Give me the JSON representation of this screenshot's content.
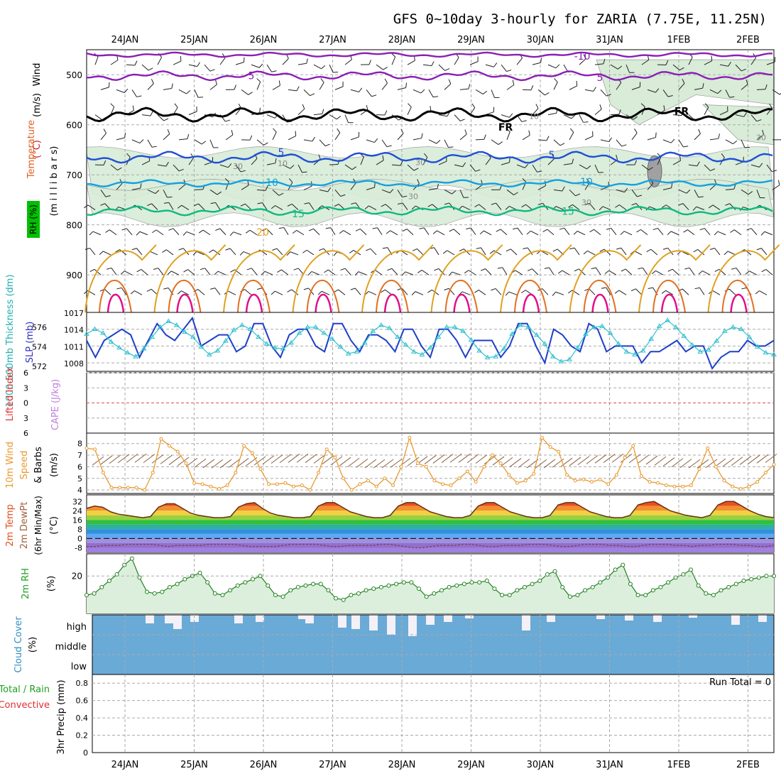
{
  "title": "GFS 0~10day 3-hourly for ZARIA (7.75E, 11.25N)",
  "dates": [
    "24JAN",
    "25JAN",
    "26JAN",
    "27JAN",
    "28JAN",
    "29JAN",
    "30JAN",
    "31JAN",
    "1FEB",
    "2FEB"
  ],
  "colors": {
    "purple": "#8a1fb5",
    "black": "#000000",
    "blue": "#1f4fd6",
    "cyan": "#14a0e0",
    "green": "#10b880",
    "gold": "#e0a020",
    "orange": "#e07020",
    "magenta": "#e0108a",
    "rh_fill": "#d8ecd8",
    "grid": "#999999"
  },
  "chart_data": [
    {
      "type": "line",
      "name": "upper_air",
      "ylabel_parts": {
        "wind": "Wind",
        "wind_unit": "(m/s)",
        "temp": "Temperature",
        "temp_unit": "(°C)",
        "rh": "RH (%)",
        "pressure": "(m i l l i b a r s)"
      },
      "y_ticks": [
        500,
        600,
        700,
        800,
        900
      ],
      "ylim": [
        1000,
        450
      ],
      "isotherm_labels": [
        {
          "text": "-10",
          "color": "purple"
        },
        {
          "text": "5",
          "color": "purple"
        },
        {
          "text": "5",
          "color": "purple"
        },
        {
          "text": "FR",
          "color": "black"
        },
        {
          "text": "FR",
          "color": "black"
        },
        {
          "text": "5",
          "color": "blue"
        },
        {
          "text": "5",
          "color": "blue"
        },
        {
          "text": "10",
          "color": "cyan"
        },
        {
          "text": "10",
          "color": "cyan"
        },
        {
          "text": "15",
          "color": "green"
        },
        {
          "text": "15",
          "color": "green"
        },
        {
          "text": "20",
          "color": "gold"
        }
      ],
      "rh_labels": [
        "30",
        "10",
        "30",
        "10",
        "30",
        "30",
        "30"
      ]
    },
    {
      "type": "line",
      "name": "thickness_slp",
      "ylabel_left": "1000-500mb Thickness (dm)",
      "ylabel_right": "SLP (mb)",
      "left_ticks": [
        572,
        574,
        576
      ],
      "right_ticks": [
        1008,
        1011,
        1014,
        1017
      ],
      "series": [
        {
          "name": "SLP (mb)",
          "color": "#1f3fc8",
          "values": [
            1012,
            1009,
            1012,
            1013,
            1014,
            1013,
            1009,
            1012,
            1015,
            1013,
            1012,
            1014,
            1016,
            1011,
            1012,
            1013,
            1013,
            1010,
            1011,
            1015,
            1015,
            1011,
            1009,
            1013,
            1014,
            1014,
            1011,
            1010,
            1015,
            1015,
            1012,
            1010,
            1013,
            1013,
            1012,
            1010,
            1014,
            1014,
            1011,
            1009,
            1014,
            1014,
            1012,
            1009,
            1012,
            1012,
            1012,
            1009,
            1011,
            1015,
            1015,
            1011,
            1008,
            1014,
            1013,
            1011,
            1010,
            1015,
            1014,
            1010,
            1011,
            1011,
            1011,
            1008,
            1010,
            1010,
            1011,
            1012,
            1010,
            1011,
            1011,
            1007,
            1009,
            1010,
            1010,
            1012,
            1011,
            1011,
            1012
          ]
        },
        {
          "name": "1000-500mb Thickness (dm)",
          "color": "#30c0d0",
          "values": [
            575.3,
            575.8,
            575.4,
            574.5,
            573.9,
            573.4,
            573.0,
            573.8,
            575.0,
            576.0,
            576.6,
            576.2,
            575.5,
            575.0,
            574.0,
            573.2,
            573.6,
            574.6,
            575.7,
            576.2,
            575.8,
            575.0,
            574.3,
            573.9,
            573.8,
            574.4,
            575.4,
            576.0,
            576.0,
            575.4,
            574.8,
            574.0,
            573.3,
            573.5,
            574.4,
            575.6,
            576.2,
            575.9,
            575.0,
            574.2,
            573.5,
            573.2,
            573.9,
            575.0,
            576.0,
            576.0,
            575.6,
            574.7,
            573.6,
            572.9,
            573.0,
            573.8,
            575.3,
            576.2,
            576.0,
            575.2,
            574.3,
            573.0,
            572.5,
            572.7,
            573.9,
            575.3,
            576.0,
            576.1,
            575.4,
            574.3,
            573.5,
            573.2,
            573.6,
            574.8,
            576.1,
            576.7,
            576.0,
            575.1,
            574.2,
            573.5,
            573.7,
            574.6,
            575.6,
            576.0,
            575.8,
            575.0,
            574.0,
            573.4,
            573.2
          ]
        }
      ]
    },
    {
      "type": "line",
      "name": "stability",
      "ylabel_left": "Lifted Index",
      "ylabel_right": "CAPE (J/kg)",
      "y_ticks": [
        -6,
        -3,
        0,
        3,
        6
      ],
      "ylim": [
        6,
        -6
      ]
    },
    {
      "type": "line",
      "name": "wind10m",
      "ylabel": "10m Wind Speed & Barbs",
      "yunit": "(m/s)",
      "y_ticks": [
        4,
        5,
        6,
        7,
        8
      ],
      "series": [
        {
          "name": "10m Wind Speed",
          "color": "#e89a30",
          "values": [
            7.6,
            7.5,
            5.5,
            4.2,
            4.2,
            4.2,
            4.2,
            4.0,
            5.5,
            8.4,
            7.8,
            7.3,
            6.3,
            4.6,
            4.5,
            4.3,
            4.1,
            4.4,
            5.5,
            7.8,
            7.2,
            5.8,
            4.5,
            4.5,
            4.6,
            4.3,
            4.4,
            4.0,
            5.5,
            7.5,
            6.8,
            5.0,
            4.0,
            4.5,
            4.8,
            4.3,
            5.0,
            4.4,
            6.0,
            8.5,
            6.3,
            6.0,
            4.8,
            4.5,
            4.4,
            5.0,
            5.6,
            4.7,
            6.0,
            7.0,
            6.3,
            5.3,
            4.6,
            4.8,
            5.4,
            8.5,
            7.7,
            7.3,
            5.3,
            4.8,
            4.9,
            4.7,
            4.9,
            4.5,
            5.3,
            6.8,
            7.8,
            5.2,
            4.7,
            4.6,
            4.4,
            4.3,
            4.3,
            4.4,
            5.8,
            7.6,
            6.0,
            4.8,
            4.3,
            4.1,
            4.3,
            4.7,
            5.5,
            6.2
          ]
        }
      ]
    },
    {
      "type": "area",
      "name": "temp2m",
      "ylabel_lines": [
        "2m Temp",
        "2m DewPt",
        "(6hr Min/Max)"
      ],
      "yunit": "(°C)",
      "y_ticks": [
        -8,
        0,
        8,
        16,
        24,
        32
      ],
      "series": [
        {
          "name": "2m Temp",
          "values": [
            26,
            28,
            27,
            23,
            21,
            20,
            19,
            18,
            19,
            27,
            30,
            30,
            26,
            22,
            20,
            19,
            18,
            18,
            19,
            27,
            30,
            31,
            26,
            22,
            20,
            19,
            18,
            18,
            19,
            28,
            31,
            31,
            27,
            23,
            21,
            19,
            18,
            18,
            20,
            28,
            31,
            31,
            27,
            23,
            21,
            19,
            18,
            18,
            20,
            28,
            31,
            31,
            27,
            23,
            21,
            19,
            18,
            18,
            20,
            29,
            31,
            31,
            27,
            23,
            21,
            19,
            18,
            18,
            20,
            29,
            31,
            32,
            28,
            24,
            22,
            20,
            19,
            18,
            20,
            29,
            32,
            32,
            28,
            24,
            21,
            19,
            18
          ]
        },
        {
          "name": "2m DewPt",
          "values": [
            -7,
            -7,
            -6,
            -6,
            -6,
            -5,
            -5,
            -5,
            -5,
            -6,
            -7,
            -6,
            -6,
            -6,
            -6,
            -5,
            -5,
            -5,
            -5,
            -6,
            -7,
            -7,
            -7,
            -7,
            -6,
            -5,
            -5,
            -5,
            -5,
            -6,
            -7,
            -7,
            -6,
            -6,
            -6,
            -6,
            -5,
            -5,
            -6,
            -7,
            -8,
            -8,
            -7,
            -6,
            -6,
            -6,
            -5,
            -5,
            -6,
            -7,
            -7,
            -6,
            -6,
            -6,
            -5,
            -5,
            -5,
            -6,
            -7,
            -7,
            -6,
            -5,
            -5,
            -5,
            -6,
            -6,
            -7,
            -7,
            -6,
            -5,
            -5,
            -5,
            -6,
            -6,
            -7,
            -6,
            -6,
            -5,
            -5,
            -5,
            -6,
            -6,
            -7,
            -7,
            -6
          ]
        }
      ]
    },
    {
      "type": "line",
      "name": "rh2m",
      "ylabel": "2m RH",
      "yunit": "(%)",
      "y_ticks": [
        20
      ],
      "series": [
        {
          "name": "2m RH",
          "values": [
            8,
            9,
            13,
            17,
            21,
            27,
            31,
            19,
            10,
            9,
            10,
            13,
            15,
            18,
            20,
            22,
            16,
            9,
            8,
            11,
            14,
            16,
            18,
            20,
            14,
            8,
            7,
            11,
            13,
            14,
            15,
            15,
            11,
            6,
            5,
            8,
            9,
            11,
            12,
            13,
            14,
            15,
            16,
            16,
            12,
            7,
            9,
            11,
            13,
            14,
            15,
            16,
            16,
            17,
            12,
            8,
            8,
            11,
            13,
            15,
            17,
            21,
            23,
            13,
            7,
            8,
            11,
            13,
            16,
            19,
            24,
            27,
            15,
            8,
            8,
            11,
            13,
            16,
            19,
            21,
            24,
            14,
            9,
            8,
            11,
            13,
            15,
            17,
            18,
            19,
            20,
            20
          ]
        }
      ]
    },
    {
      "type": "bar",
      "name": "cloud",
      "ylabel": "Cloud Cover",
      "yunit": "(%)",
      "levels": [
        "high",
        "middle",
        "low"
      ]
    },
    {
      "type": "bar",
      "name": "precip",
      "ylabel_left": "Total / Rain",
      "ylabel_left2": "Convective",
      "ylabel": "3hr Precip (mm)",
      "y_ticks": [
        "0",
        "0.2",
        "0.4",
        "0.6",
        "0.8"
      ],
      "run_total": "Run Total = 0"
    }
  ]
}
